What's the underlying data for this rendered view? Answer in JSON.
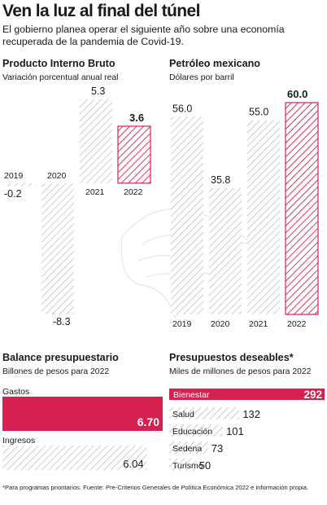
{
  "header": {
    "title": "Ven la luz al final del túnel",
    "subtitle": "El gobierno planea operar el siguiente año sobre una economía recuperada de la pandemia de Covid-19."
  },
  "panels": {
    "gdp": {
      "title": "Producto Interno Bruto",
      "subtitle": "Variación porcentual anual real"
    },
    "oil": {
      "title": "Petróleo mexicano",
      "subtitle": "Dólares por barril"
    },
    "balance": {
      "title": "Balance presupuestario",
      "subtitle": "Billones de pesos para 2022"
    },
    "budgets": {
      "title": "Presupuestos deseables*",
      "subtitle": "Miles de millones de pesos para 2022"
    }
  },
  "footnote": "*Para programas prioritarios. Fuente: Pre-Criterios Generales de Política Económica 2022 e información propia.",
  "colors": {
    "highlight": "#d6204f",
    "hatch": "#b9b9b9",
    "text": "#1a1a1a"
  },
  "chart_data": [
    {
      "type": "bar",
      "title": "Producto Interno Bruto",
      "ylabel": "Variación porcentual anual real",
      "categories": [
        "2019",
        "2020",
        "2021",
        "2022"
      ],
      "values": [
        -0.2,
        -8.3,
        5.3,
        3.6
      ],
      "value_labels": [
        "-0.2",
        "-8.3",
        "5.3",
        "3.6"
      ],
      "highlight": "2022",
      "ylim": [
        -8.3,
        5.3
      ]
    },
    {
      "type": "bar",
      "title": "Petróleo mexicano",
      "ylabel": "Dólares por barril",
      "categories": [
        "2019",
        "2020",
        "2021",
        "2022"
      ],
      "values": [
        56.0,
        35.8,
        55.0,
        60.0
      ],
      "value_labels": [
        "56.0",
        "35.8",
        "55.0",
        "60.0"
      ],
      "highlight": "2022",
      "ylim": [
        0,
        60
      ]
    },
    {
      "type": "bar",
      "orientation": "horizontal",
      "title": "Balance presupuestario",
      "ylabel": "Billones de pesos para 2022",
      "categories": [
        "Gastos",
        "Ingresos"
      ],
      "values": [
        6.7,
        6.04
      ],
      "value_labels": [
        "6.70",
        "6.04"
      ],
      "highlight": "Gastos",
      "xlim": [
        0,
        6.7
      ]
    },
    {
      "type": "bar",
      "orientation": "horizontal",
      "title": "Presupuestos deseables*",
      "ylabel": "Miles de millones de pesos para 2022",
      "categories": [
        "Bienestar",
        "Salud",
        "Educación",
        "Sedena",
        "Turismo"
      ],
      "values": [
        292,
        132,
        101,
        73,
        50
      ],
      "value_labels": [
        "292",
        "132",
        "101",
        "73",
        "50"
      ],
      "highlight": "Bienestar",
      "xlim": [
        0,
        292
      ]
    }
  ]
}
